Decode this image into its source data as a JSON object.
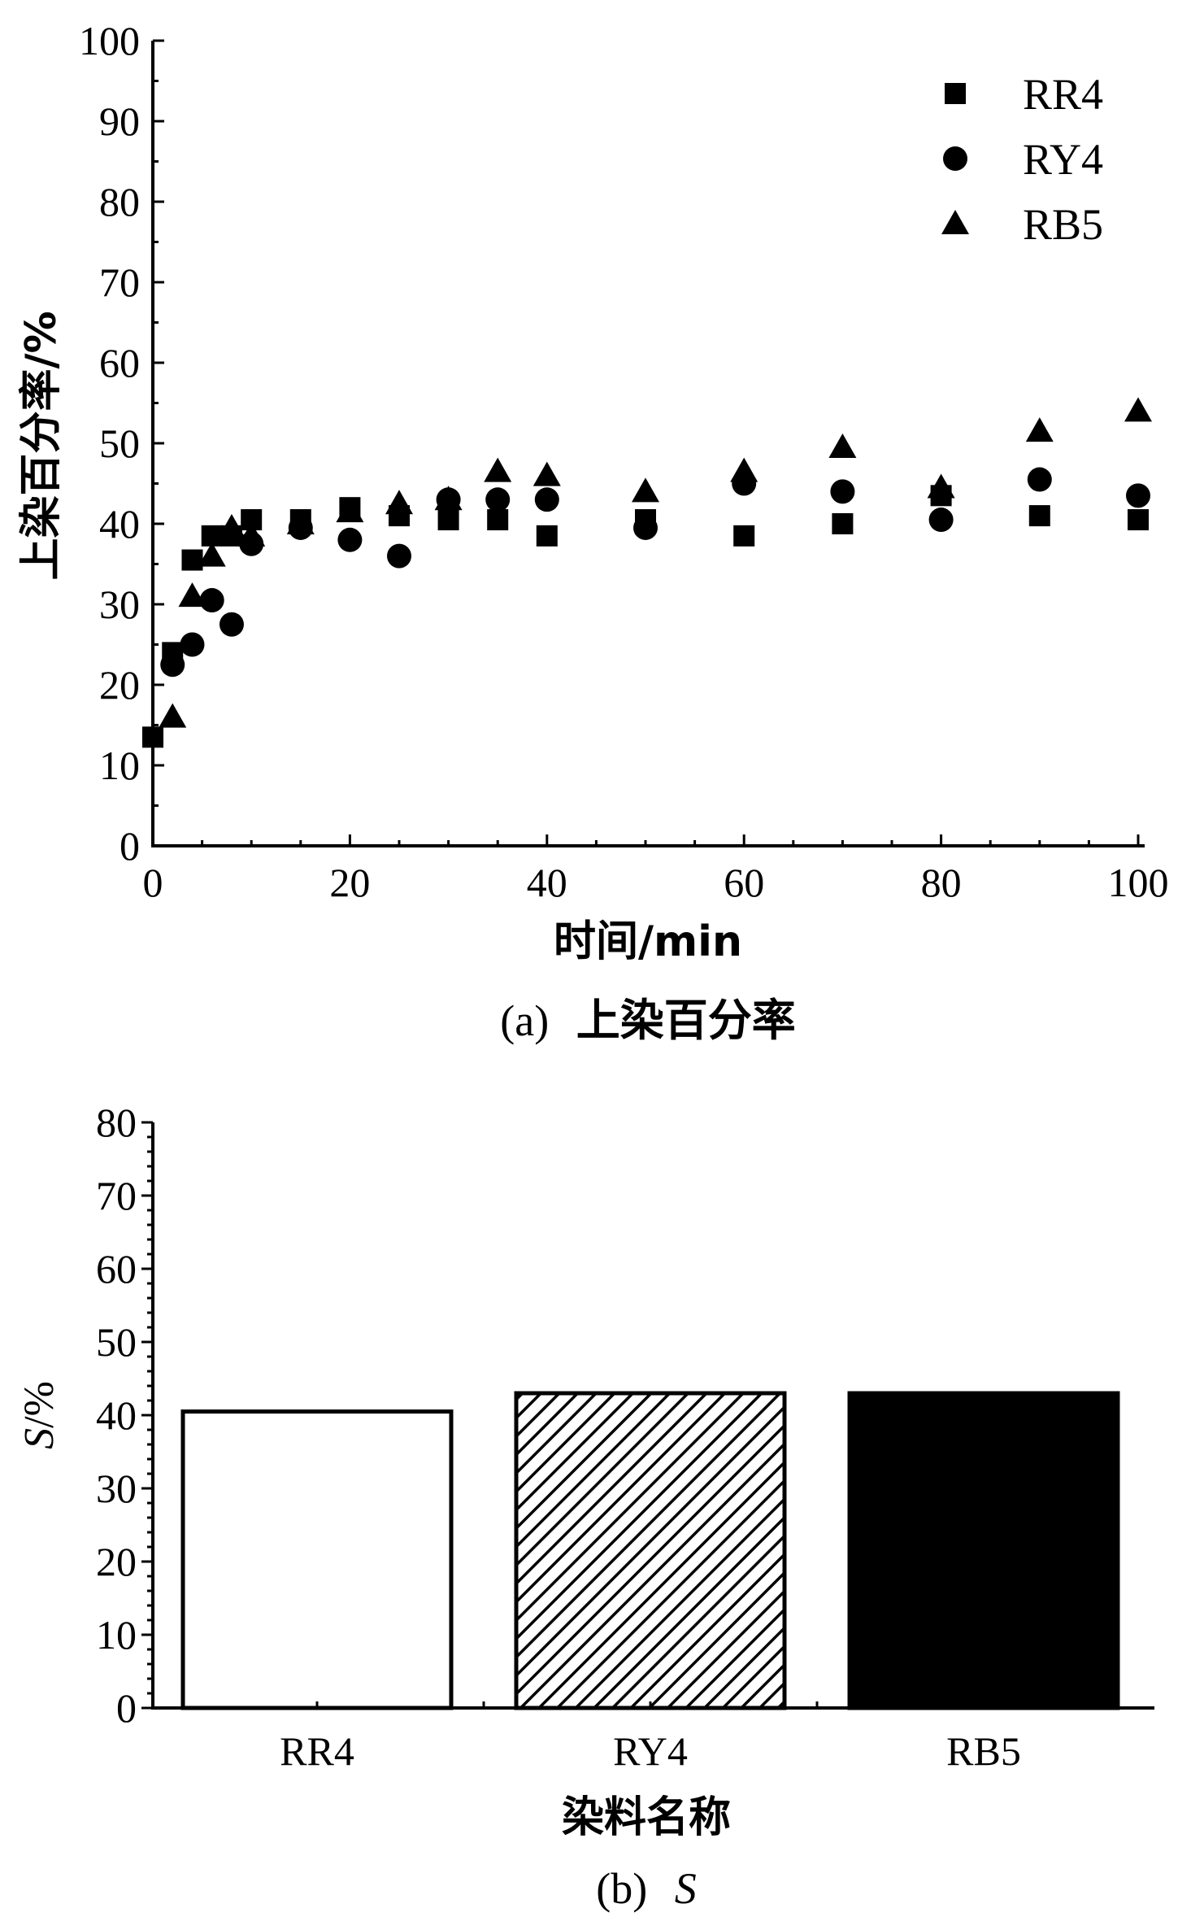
{
  "figure": {
    "chart_data": [
      {
        "type": "scatter",
        "caption_label": "(a)",
        "caption_text": "上染百分率",
        "xlabel": "时间/min",
        "ylabel": "上染百分率/%",
        "xlim": [
          0,
          100
        ],
        "ylim": [
          0,
          100
        ],
        "x_ticks": [
          "0",
          "20",
          "40",
          "60",
          "80",
          "100"
        ],
        "y_ticks": [
          "0",
          "10",
          "20",
          "30",
          "40",
          "50",
          "60",
          "70",
          "80",
          "90",
          "100"
        ],
        "legend_position": "top-right",
        "series": [
          {
            "name": "RR4",
            "marker": "square",
            "x": [
              0,
              2,
              4,
              6,
              8,
              10,
              15,
              20,
              25,
              30,
              35,
              40,
              50,
              60,
              70,
              80,
              90,
              100
            ],
            "y": [
              13.5,
              24,
              35.5,
              38.5,
              38.5,
              40.5,
              40.5,
              42,
              41,
              40.5,
              40.5,
              38.5,
              40.5,
              38.5,
              40,
              43.5,
              41,
              40.5
            ]
          },
          {
            "name": "RY4",
            "marker": "circle",
            "x": [
              2,
              4,
              6,
              8,
              10,
              15,
              20,
              25,
              30,
              35,
              40,
              50,
              60,
              70,
              80,
              90,
              100
            ],
            "y": [
              22.5,
              25,
              30.5,
              27.5,
              37.5,
              39.5,
              38,
              36,
              43,
              43,
              43,
              39.5,
              45,
              44,
              40.5,
              45.5,
              43.5
            ]
          },
          {
            "name": "RB5",
            "marker": "triangle",
            "x": [
              2,
              4,
              6,
              8,
              10,
              15,
              20,
              25,
              30,
              35,
              40,
              50,
              60,
              70,
              80,
              90,
              100
            ],
            "y": [
              16,
              31,
              36,
              39.5,
              38.5,
              40,
              41.5,
              42.5,
              43,
              46.5,
              46,
              44,
              46.5,
              49.5,
              44.5,
              51.5,
              54
            ]
          }
        ]
      },
      {
        "type": "bar",
        "caption_label": "(b)",
        "caption_text": "S",
        "xlabel": "染料名称",
        "ylabel_italic": "S",
        "ylabel_suffix": "/%",
        "ylim": [
          0,
          80
        ],
        "y_ticks": [
          "0",
          "10",
          "20",
          "30",
          "40",
          "50",
          "60",
          "70",
          "80"
        ],
        "categories": [
          "RR4",
          "RY4",
          "RB5"
        ],
        "values": [
          40.5,
          43,
          43
        ],
        "fills": [
          "white",
          "hatched",
          "black"
        ]
      }
    ]
  }
}
